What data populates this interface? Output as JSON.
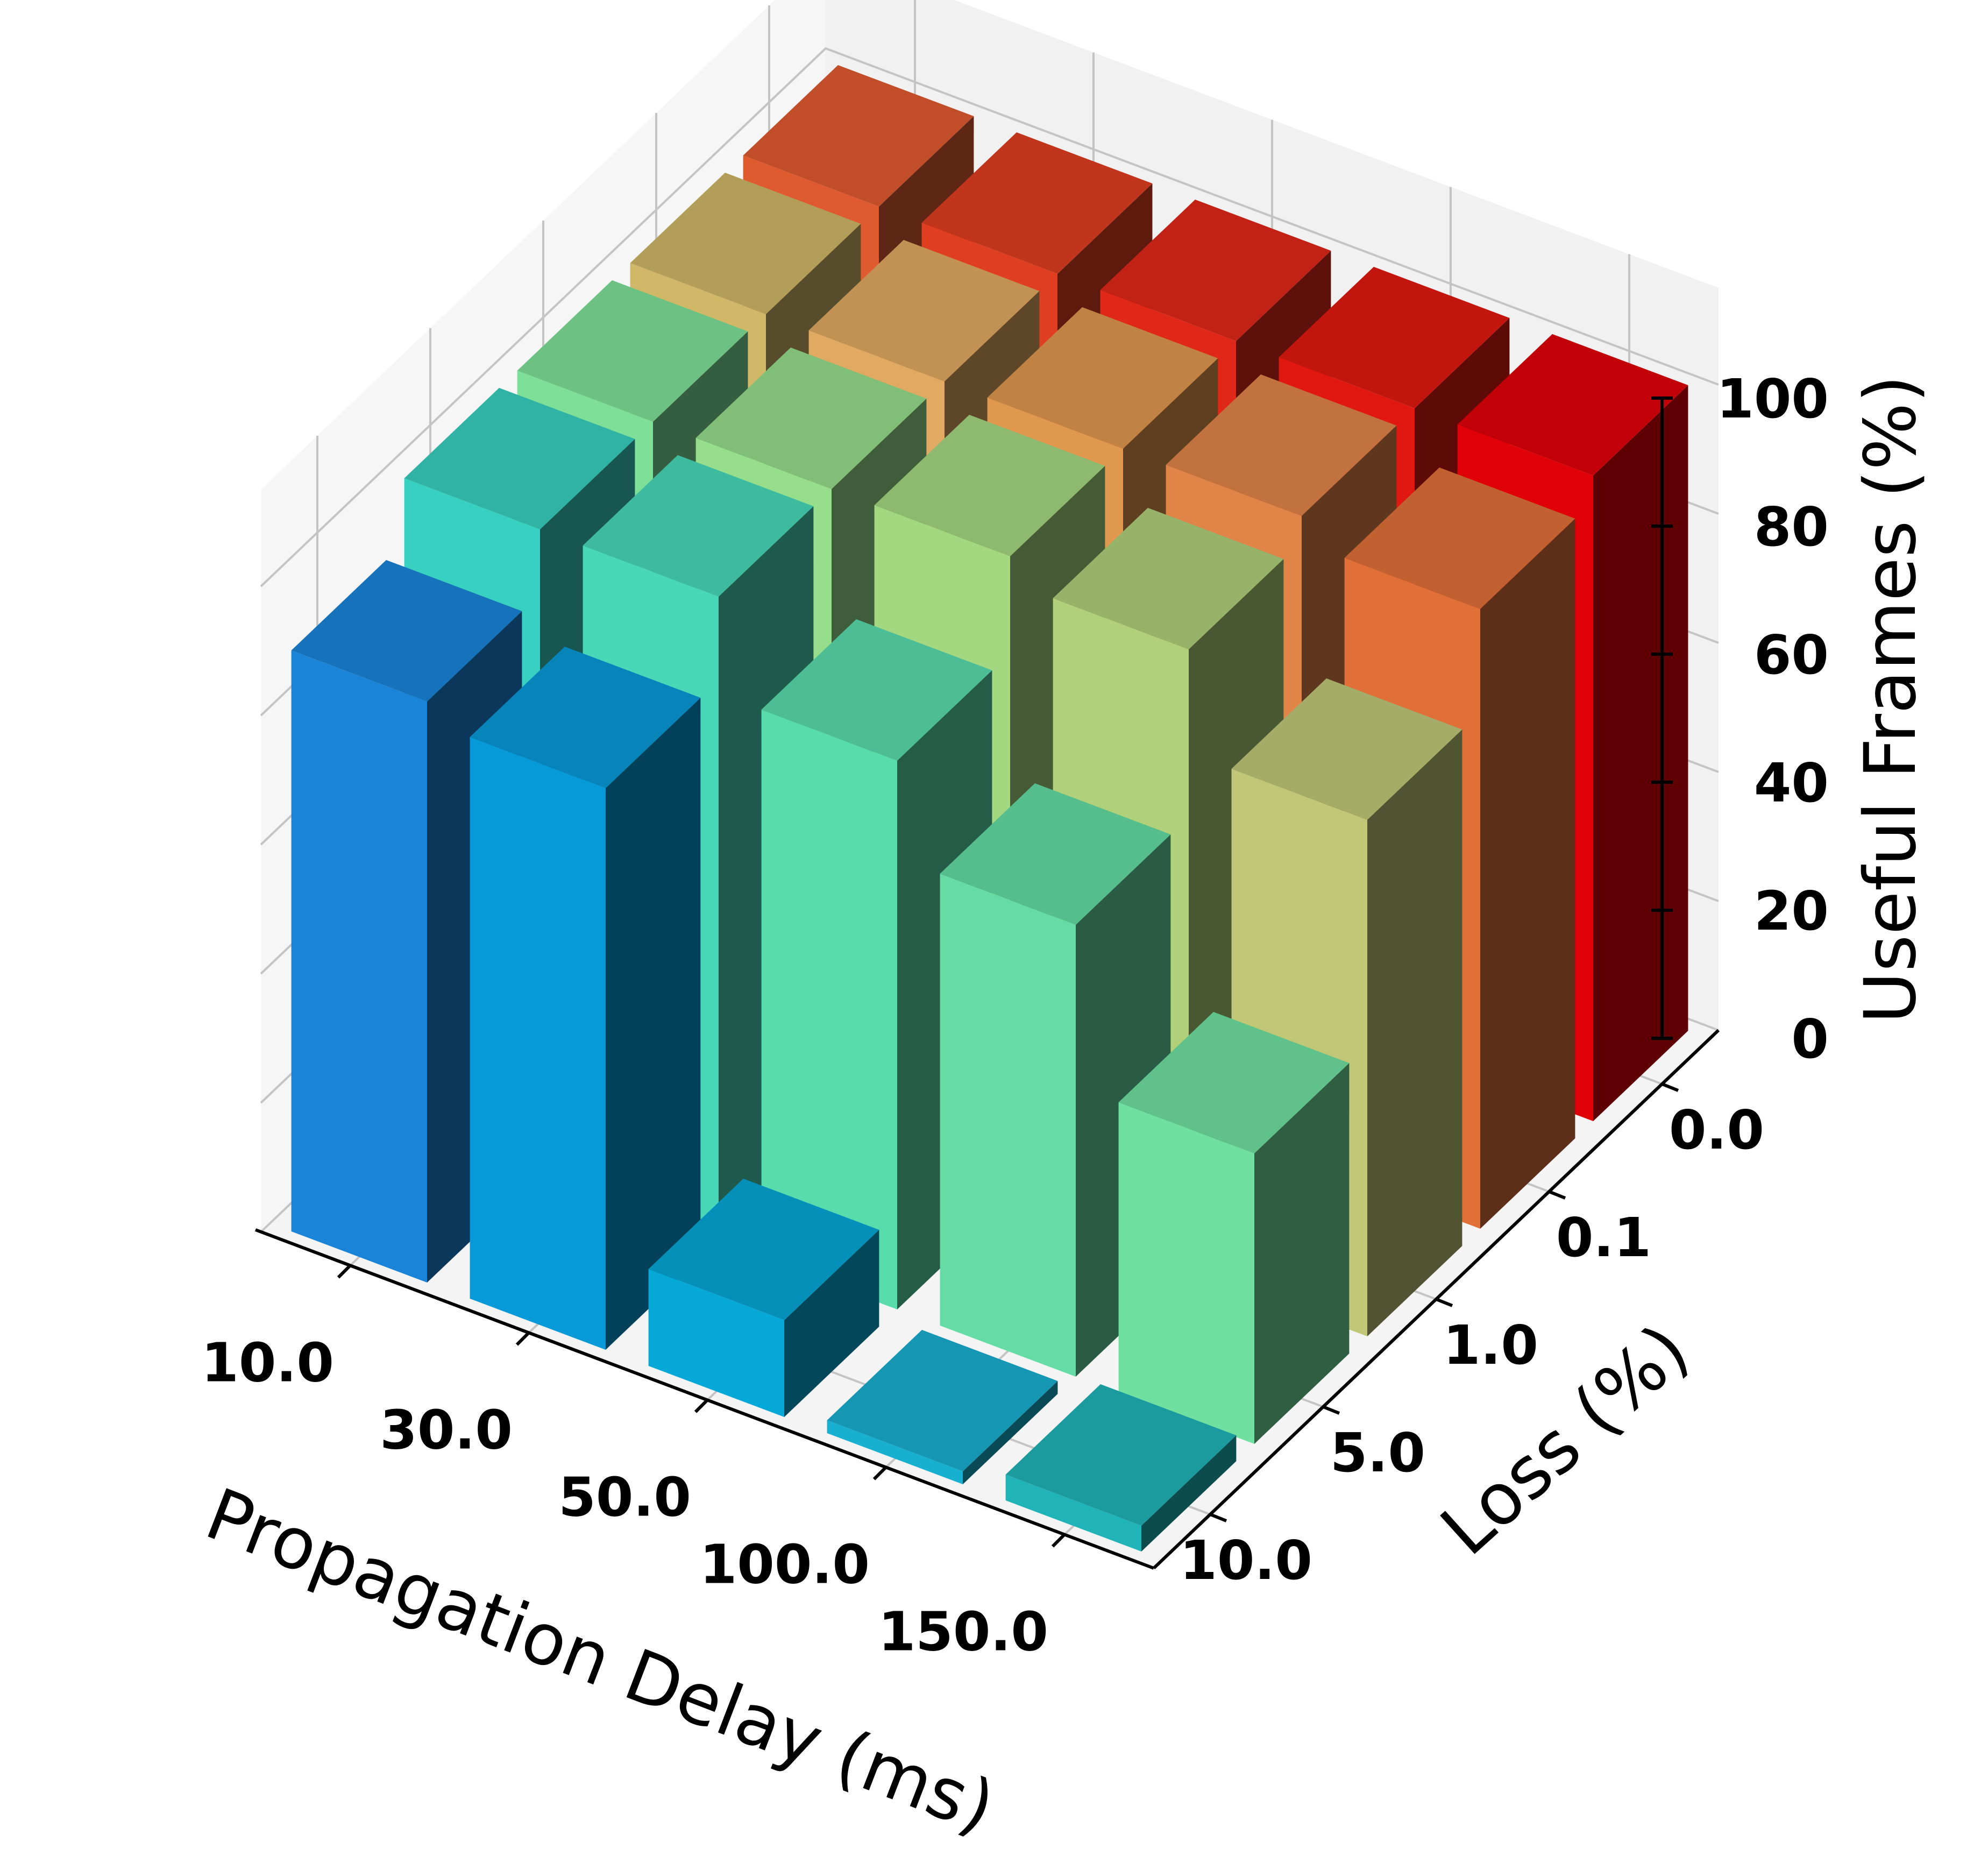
{
  "chart_data": {
    "type": "bar",
    "projection": "3d",
    "xlabel": "Propagation Delay (ms)",
    "ylabel": "Loss (%)",
    "zlabel": "Useful Frames (%)",
    "x_categories": [
      "10.0",
      "30.0",
      "50.0",
      "100.0",
      "150.0"
    ],
    "y_categories": [
      "0.0",
      "0.1",
      "1.0",
      "5.0",
      "10.0"
    ],
    "z_ticks": [
      "0",
      "20",
      "40",
      "60",
      "80",
      "100"
    ],
    "zlim": [
      0,
      100
    ],
    "grid": true,
    "values": [
      [
        100,
        100,
        100,
        100,
        100
      ],
      [
        100,
        100,
        100,
        100,
        96
      ],
      [
        100,
        100,
        100,
        96,
        80
      ],
      [
        100,
        100,
        85,
        70,
        45
      ],
      [
        90,
        87,
        15,
        2,
        4
      ]
    ],
    "colormap": "rainbow-by-value",
    "colors": {
      "pane": "#f2f2f2",
      "grid": "#c4c4c4",
      "axis": "#000000"
    }
  }
}
